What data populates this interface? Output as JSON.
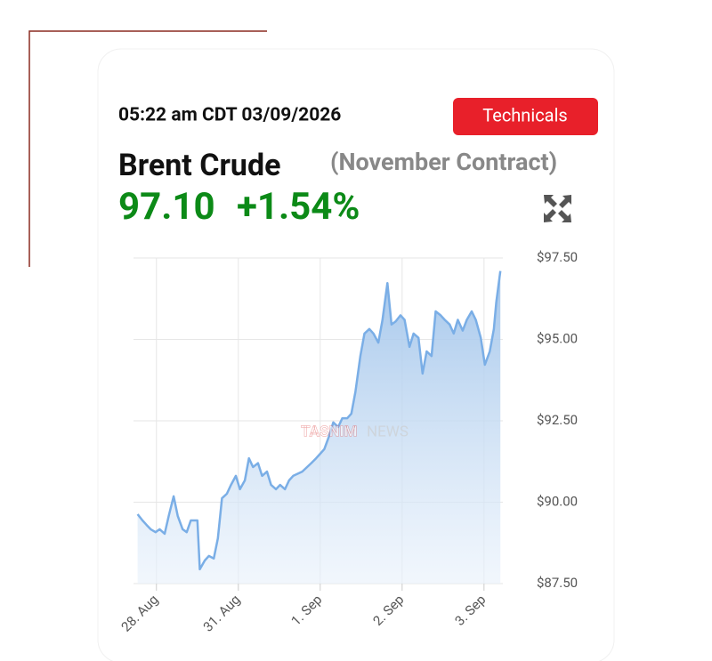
{
  "header": {
    "timestamp": "05:22 am CDT 03/09/2026",
    "button": "Technicals",
    "name": "Brent Crude",
    "contract": "(November Contract)",
    "price": "97.10",
    "change": "+1.54%"
  },
  "watermark": {
    "brand": "TASNIM",
    "suffix": "NEWS"
  },
  "chart_data": {
    "type": "area",
    "color": "#7aaee6",
    "grid": true,
    "x": [
      -0.23,
      -0.17,
      -0.12,
      -0.07,
      -0.01,
      0.04,
      0.1,
      0.15,
      0.21,
      0.26,
      0.32,
      0.37,
      0.42,
      0.5,
      0.53,
      0.59,
      0.64,
      0.7,
      0.75,
      0.8,
      0.86,
      0.91,
      0.97,
      1.02,
      1.08,
      1.13,
      1.18,
      1.24,
      1.29,
      1.35,
      1.4,
      1.46,
      1.51,
      1.57,
      1.62,
      1.67,
      1.78,
      1.89,
      1.95,
      2.0,
      2.05,
      2.11,
      2.16,
      2.22,
      2.27,
      2.33,
      2.38,
      2.43,
      2.49,
      2.54,
      2.6,
      2.65,
      2.71,
      2.76,
      2.82,
      2.87,
      2.92,
      2.98,
      3.03,
      3.09,
      3.14,
      3.2,
      3.25,
      3.3,
      3.36,
      3.41,
      3.47,
      3.52,
      3.58,
      3.63,
      3.68,
      3.74,
      3.79,
      3.85,
      3.9,
      3.96,
      4.01,
      4.07,
      4.12,
      4.15,
      4.2
    ],
    "values": [
      89.63,
      89.44,
      89.3,
      89.17,
      89.08,
      89.17,
      89.03,
      89.58,
      90.18,
      89.58,
      89.17,
      89.08,
      89.44,
      89.44,
      87.94,
      88.21,
      88.35,
      88.27,
      88.89,
      90.12,
      90.26,
      90.53,
      90.81,
      90.4,
      90.67,
      91.35,
      91.08,
      91.2,
      90.81,
      90.94,
      90.53,
      90.4,
      90.53,
      90.4,
      90.67,
      90.81,
      90.94,
      91.2,
      91.35,
      91.49,
      91.63,
      92.04,
      92.45,
      92.31,
      92.58,
      92.58,
      92.72,
      93.4,
      94.49,
      95.18,
      95.32,
      95.18,
      94.9,
      95.59,
      96.73,
      95.46,
      95.55,
      95.74,
      95.6,
      94.77,
      95.18,
      95.05,
      93.95,
      94.63,
      94.49,
      95.86,
      95.74,
      95.6,
      95.46,
      95.18,
      95.6,
      95.27,
      95.6,
      95.86,
      95.6,
      95.05,
      94.22,
      94.63,
      95.32,
      96.14,
      97.1
    ],
    "xlim": [
      -0.28,
      4.23
    ],
    "xticks": [
      {
        "value": 0,
        "label": "28. Aug"
      },
      {
        "value": 1,
        "label": "31. Aug"
      },
      {
        "value": 2,
        "label": "1. Sep"
      },
      {
        "value": 3,
        "label": "2. Sep"
      },
      {
        "value": 4,
        "label": "3. Sep"
      }
    ],
    "ylim": [
      87.5,
      97.5
    ],
    "yticks": [
      {
        "value": 87.5,
        "label": "$87.50"
      },
      {
        "value": 90,
        "label": "$90.00"
      },
      {
        "value": 92.5,
        "label": "$92.50"
      },
      {
        "value": 95,
        "label": "$95.00"
      },
      {
        "value": 97.5,
        "label": "$97.50"
      }
    ]
  }
}
